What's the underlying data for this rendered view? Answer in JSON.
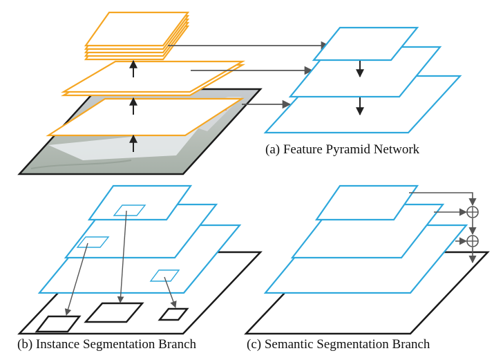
{
  "captions": {
    "a": "(a) Feature Pyramid Network",
    "b": "(b) Instance Segmentation Branch",
    "c": "(c) Semantic Segmentation Branch"
  },
  "colors": {
    "backbone": "#F5A623",
    "pyramid": "#2EA8DC",
    "outline": "#1a1a1a",
    "arrow": "#555555"
  },
  "icons": {
    "image": "photo-of-boat",
    "sum": "circled-plus-icon"
  }
}
